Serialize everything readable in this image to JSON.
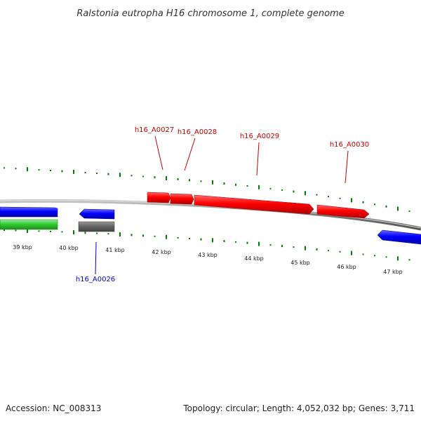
{
  "title": "Ralstonia eutropha H16 chromosome 1, complete genome",
  "footer": {
    "accession": "Accession: NC_008313",
    "summary": "Topology: circular; Length: 4,052,032 bp; Genes: 3,711"
  },
  "colors": {
    "forward_gene": "#ff0000",
    "forward_gene_alt": "#0000ff",
    "reverse_gene": "#0000ff",
    "rna_gene": "#33cc33",
    "pseudo_gene": "#666666",
    "backbone": "#808080",
    "gc_ticks": "#008000",
    "label_forward": "#cc0000",
    "label_reverse": "#0000cc"
  },
  "scale_labels": [
    "39 kbp",
    "40 kbp",
    "41 kbp",
    "42 kbp",
    "43 kbp",
    "44 kbp",
    "45 kbp",
    "46 kbp",
    "47 kbp"
  ],
  "gene_labels": [
    {
      "text": "h16_A0027",
      "strand": "forward"
    },
    {
      "text": "h16_A0028",
      "strand": "forward"
    },
    {
      "text": "h16_A0029",
      "strand": "forward"
    },
    {
      "text": "h16_A0030",
      "strand": "forward"
    },
    {
      "text": "h16_A0026",
      "strand": "reverse"
    }
  ]
}
